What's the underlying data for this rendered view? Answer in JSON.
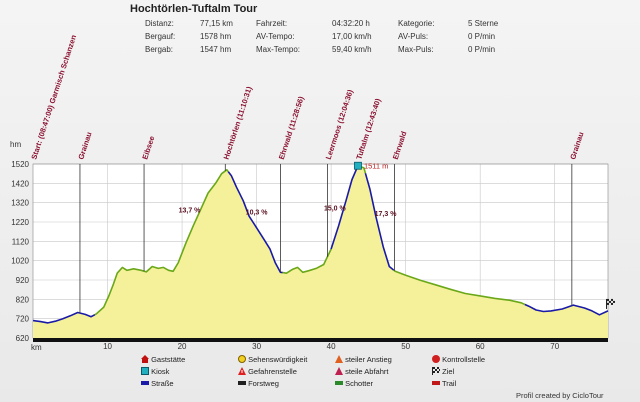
{
  "title": "Hochtörlen-Tuftalm Tour",
  "stats": [
    {
      "label": "Distanz:",
      "value": "77,15 km"
    },
    {
      "label": "Bergauf:",
      "value": "1578 hm"
    },
    {
      "label": "Bergab:",
      "value": "1547 hm"
    },
    {
      "label": "Fahrzeit:",
      "value": "04:32:20 h"
    },
    {
      "label": "AV-Tempo:",
      "value": "17,00 km/h"
    },
    {
      "label": "Max-Tempo:",
      "value": "59,40 km/h"
    },
    {
      "label": "Kategorie:",
      "value": "5 Sterne"
    },
    {
      "label": "AV-Puls:",
      "value": "0 P/min"
    },
    {
      "label": "Max-Puls:",
      "value": "0 P/min"
    }
  ],
  "credit": "Profil created by CicloTour",
  "colors": {
    "fill": "#f5f19a",
    "line_green": "#6aa81a",
    "line_blue": "#1a1aa8",
    "waypoint": "#8a1030",
    "grid": "#c8c8c8"
  },
  "chart_data": {
    "type": "area",
    "title": "",
    "xlabel": "km",
    "ylabel": "hm",
    "xlim": [
      0,
      77.15
    ],
    "ylim": [
      620,
      1520
    ],
    "x_ticks": [
      10,
      20,
      30,
      40,
      50,
      60,
      70
    ],
    "y_ticks": [
      620,
      720,
      820,
      920,
      1020,
      1120,
      1220,
      1320,
      1420,
      1520
    ],
    "grid": true,
    "profile": [
      [
        0,
        710
      ],
      [
        1,
        705
      ],
      [
        2,
        698
      ],
      [
        3,
        707
      ],
      [
        4,
        720
      ],
      [
        5,
        735
      ],
      [
        6,
        752
      ],
      [
        7,
        742
      ],
      [
        7.8,
        730
      ],
      [
        8.5,
        745
      ],
      [
        9.5,
        780
      ],
      [
        10.2,
        840
      ],
      [
        10.8,
        900
      ],
      [
        11.3,
        955
      ],
      [
        12,
        985
      ],
      [
        12.6,
        970
      ],
      [
        13.5,
        978
      ],
      [
        14.5,
        970
      ],
      [
        15.2,
        962
      ],
      [
        16,
        990
      ],
      [
        16.8,
        980
      ],
      [
        17.5,
        985
      ],
      [
        18.2,
        970
      ],
      [
        18.8,
        965
      ],
      [
        19.5,
        1010
      ],
      [
        20.5,
        1110
      ],
      [
        21.5,
        1200
      ],
      [
        22.5,
        1285
      ],
      [
        23.5,
        1370
      ],
      [
        24.5,
        1420
      ],
      [
        25.3,
        1470
      ],
      [
        26,
        1490
      ],
      [
        26.6,
        1460
      ],
      [
        27.3,
        1400
      ],
      [
        28.2,
        1330
      ],
      [
        29,
        1250
      ],
      [
        30,
        1190
      ],
      [
        31,
        1130
      ],
      [
        31.8,
        1080
      ],
      [
        32.5,
        1010
      ],
      [
        33.2,
        960
      ],
      [
        34,
        955
      ],
      [
        34.8,
        975
      ],
      [
        35.5,
        985
      ],
      [
        36.2,
        960
      ],
      [
        37,
        968
      ],
      [
        38,
        980
      ],
      [
        39,
        1000
      ],
      [
        40,
        1080
      ],
      [
        41,
        1200
      ],
      [
        42,
        1330
      ],
      [
        42.8,
        1440
      ],
      [
        43.6,
        1511
      ],
      [
        44.4,
        1500
      ],
      [
        45.2,
        1390
      ],
      [
        46,
        1250
      ],
      [
        47,
        1090
      ],
      [
        47.8,
        990
      ],
      [
        48.6,
        965
      ],
      [
        50,
        945
      ],
      [
        52,
        918
      ],
      [
        54,
        895
      ],
      [
        56,
        872
      ],
      [
        58,
        850
      ],
      [
        60,
        838
      ],
      [
        62,
        825
      ],
      [
        64,
        815
      ],
      [
        65.5,
        802
      ],
      [
        66.5,
        785
      ],
      [
        67.5,
        765
      ],
      [
        68.5,
        757
      ],
      [
        69.5,
        760
      ],
      [
        71,
        770
      ],
      [
        72.5,
        790
      ],
      [
        74,
        775
      ],
      [
        75,
        760
      ],
      [
        76,
        740
      ],
      [
        77.15,
        760
      ]
    ],
    "surface_segments": [
      {
        "from": 0,
        "to": 8.3,
        "surface": "Straße"
      },
      {
        "from": 8.3,
        "to": 26.2,
        "surface": "Schotter"
      },
      {
        "from": 26.2,
        "to": 33.5,
        "surface": "Straße"
      },
      {
        "from": 33.5,
        "to": 40.0,
        "surface": "Schotter"
      },
      {
        "from": 40.0,
        "to": 43.6,
        "surface": "Straße"
      },
      {
        "from": 43.6,
        "to": 44.6,
        "surface": "Schotter"
      },
      {
        "from": 44.6,
        "to": 48.4,
        "surface": "Straße"
      },
      {
        "from": 48.4,
        "to": 66.0,
        "surface": "Schotter"
      },
      {
        "from": 66.0,
        "to": 77.15,
        "surface": "Straße"
      }
    ],
    "waypoints": [
      {
        "km": 0,
        "label": "Start: (08:47:00) Garmisch Schanzen"
      },
      {
        "km": 6.3,
        "label": "Grainau"
      },
      {
        "km": 14.9,
        "label": "Eibsee"
      },
      {
        "km": 25.8,
        "label": "Hochtörlen (11:10:31)"
      },
      {
        "km": 33.2,
        "label": "Ehrwald (11:28:56)"
      },
      {
        "km": 39.5,
        "label": "Leermoos (12:04:36)"
      },
      {
        "km": 43.6,
        "label": "Tuftalm (12:43:40)"
      },
      {
        "km": 48.5,
        "label": "Ehrwald"
      },
      {
        "km": 72.3,
        "label": "Grainau"
      }
    ],
    "gradients": [
      {
        "km": 21.0,
        "elev": 1270,
        "label": "13,7 %"
      },
      {
        "km": 30.0,
        "elev": 1260,
        "label": "10,3 %"
      },
      {
        "km": 40.5,
        "elev": 1280,
        "label": "15,0 %"
      },
      {
        "km": 47.3,
        "elev": 1250,
        "label": "17,3 %"
      }
    ],
    "peak_label": {
      "km": 43.6,
      "elev": 1511,
      "label": "1511 m"
    },
    "legend": [
      {
        "label": "Gaststätte",
        "icon": "house-icon"
      },
      {
        "label": "Kiosk",
        "icon": "kiosk-icon"
      },
      {
        "label": "Straße",
        "icon": "blue-line-icon"
      },
      {
        "label": "Sehenswürdigkeit",
        "icon": "sight-icon"
      },
      {
        "label": "Gefahrenstelle",
        "icon": "danger-icon"
      },
      {
        "label": "Forstweg",
        "icon": "dark-line-icon"
      },
      {
        "label": "steiler Anstieg",
        "icon": "steep-up-icon"
      },
      {
        "label": "steile Abfahrt",
        "icon": "steep-down-icon"
      },
      {
        "label": "Schotter",
        "icon": "green-line-icon"
      },
      {
        "label": "Kontrollstelle",
        "icon": "checkpoint-icon"
      },
      {
        "label": "Ziel",
        "icon": "finish-flag-icon"
      },
      {
        "label": "Trail",
        "icon": "red-line-icon"
      }
    ]
  }
}
